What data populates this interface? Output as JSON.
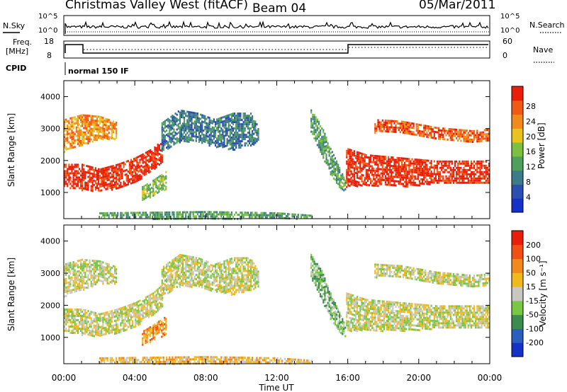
{
  "header": {
    "title": "Christmas Valley West (fitACF)",
    "beam": "Beam 04",
    "date": "05/Mar/2011"
  },
  "top_panels": {
    "nsky_label": "N.Sky",
    "nsky_ticks": [
      "10^5",
      "10^0"
    ],
    "nsearch_label": "N.Search",
    "nsearch_ticks": [
      "10^5",
      "10^0"
    ],
    "freq_label_1": "Freq.",
    "freq_label_2": "[MHz]",
    "freq_ticks": [
      "18",
      "8"
    ],
    "nave_label": "Nave",
    "nave_ticks": [
      "60",
      "0"
    ],
    "cpid_label": "CPID",
    "cpid_value": "normal 150 IF"
  },
  "chart_data": [
    {
      "type": "heatmap",
      "title": "",
      "xlabel": "Time UT",
      "ylabel": "Slant Range [km]",
      "x_ticks": [
        "00:00",
        "04:00",
        "08:00",
        "12:00",
        "16:00",
        "20:00",
        "00:00"
      ],
      "xlim": [
        0,
        24
      ],
      "y_ticks": [
        1000,
        2000,
        3000,
        4000
      ],
      "ylim": [
        180,
        4500
      ],
      "colorbar": {
        "label": "Power [dB]",
        "ticks": [
          "4",
          "8",
          "12",
          "16",
          "20",
          "24",
          "28"
        ],
        "colors": [
          "#1432c8",
          "#2a4fb0",
          "#3d7a8a",
          "#4fa05a",
          "#7cc040",
          "#e8c31e",
          "#f08a1a",
          "#f05a14",
          "#e81e0a"
        ]
      },
      "regions": [
        {
          "name": "evening-low-band",
          "t": [
            0.0,
            1.0,
            2.0,
            3.0,
            4.0,
            5.0,
            5.6
          ],
          "r_low": [
            1200,
            1100,
            1050,
            1150,
            1350,
            1700,
            2000
          ],
          "r_high": [
            1900,
            1900,
            1750,
            1900,
            2100,
            2400,
            2700
          ],
          "level": 8
        },
        {
          "name": "evening-upper-band",
          "t": [
            0.0,
            1.0,
            2.0,
            3.0
          ],
          "r_low": [
            2300,
            2500,
            2700,
            2700
          ],
          "r_high": [
            3300,
            3450,
            3400,
            3200
          ],
          "level": 6
        },
        {
          "name": "early-patch",
          "t": [
            4.4,
            5.0,
            5.8
          ],
          "r_low": [
            800,
            900,
            1150
          ],
          "r_high": [
            1200,
            1400,
            1700
          ],
          "level": 4
        },
        {
          "name": "night-band",
          "t": [
            5.5,
            6.5,
            7.5,
            8.5,
            9.5,
            10.5,
            11.0
          ],
          "r_low": [
            2300,
            2600,
            2600,
            2450,
            2350,
            2500,
            2600
          ],
          "r_high": [
            3200,
            3600,
            3500,
            3300,
            3500,
            3500,
            3000
          ],
          "level": 2
        },
        {
          "name": "post-midday-streak",
          "t": [
            13.9,
            14.5,
            15.0,
            15.5,
            15.9
          ],
          "r_low": [
            2900,
            2200,
            1600,
            1200,
            1000
          ],
          "r_high": [
            3600,
            3100,
            2400,
            1800,
            1300
          ],
          "level": 3
        },
        {
          "name": "day-main-band",
          "t": [
            15.9,
            17.0,
            19.0,
            21.0,
            23.0,
            24.0
          ],
          "r_low": [
            1200,
            1250,
            1200,
            1300,
            1300,
            1300
          ],
          "r_high": [
            2400,
            2200,
            2100,
            2000,
            2000,
            2000
          ],
          "level": 8
        },
        {
          "name": "day-upper-band",
          "t": [
            17.5,
            19.0,
            21.0,
            23.0,
            24.0
          ],
          "r_low": [
            2900,
            2900,
            2700,
            2600,
            2600
          ],
          "r_high": [
            3300,
            3250,
            3050,
            2950,
            3000
          ],
          "level": 7
        },
        {
          "name": "near-range-clutter",
          "t": [
            2.0,
            8.0,
            12.0,
            14.0
          ],
          "r_low": [
            200,
            200,
            200,
            200
          ],
          "r_high": [
            380,
            420,
            380,
            300
          ],
          "level": 3
        }
      ]
    },
    {
      "type": "heatmap",
      "title": "",
      "xlabel": "Time UT",
      "ylabel": "Slant Range [km]",
      "x_ticks": [
        "00:00",
        "04:00",
        "08:00",
        "12:00",
        "16:00",
        "20:00",
        "00:00"
      ],
      "xlim": [
        0,
        24
      ],
      "y_ticks": [
        1000,
        2000,
        3000,
        4000
      ],
      "ylim": [
        180,
        4500
      ],
      "colorbar": {
        "label": "Velocity [m s⁻¹]",
        "ticks": [
          "200",
          "100",
          "50",
          "15",
          "-15",
          "-50",
          "-100",
          "-200"
        ],
        "colors": [
          "#1432c8",
          "#2a5fc0",
          "#3c8c50",
          "#78c846",
          "#c8c8c0",
          "#f0b91e",
          "#f08a1a",
          "#f05014",
          "#e81e0a"
        ]
      },
      "regions": [
        {
          "name": "evening-low-band",
          "t": [
            0.0,
            1.0,
            2.0,
            3.0,
            4.0,
            5.0,
            5.6
          ],
          "r_low": [
            1200,
            1100,
            1050,
            1150,
            1350,
            1700,
            2000
          ],
          "r_high": [
            1900,
            1900,
            1750,
            1900,
            2100,
            2400,
            2700
          ],
          "level": 4
        },
        {
          "name": "evening-upper-band",
          "t": [
            0.0,
            1.0,
            2.0,
            3.0
          ],
          "r_low": [
            2300,
            2500,
            2700,
            2700
          ],
          "r_high": [
            3300,
            3450,
            3400,
            3200
          ],
          "level": 4
        },
        {
          "name": "early-patch",
          "t": [
            4.4,
            5.0,
            5.8
          ],
          "r_low": [
            800,
            900,
            1150
          ],
          "r_high": [
            1200,
            1400,
            1700
          ],
          "level": 6
        },
        {
          "name": "night-band",
          "t": [
            5.5,
            6.5,
            7.5,
            8.5,
            9.5,
            10.5,
            11.0
          ],
          "r_low": [
            2300,
            2600,
            2600,
            2450,
            2350,
            2500,
            2600
          ],
          "r_high": [
            3200,
            3600,
            3500,
            3300,
            3500,
            3500,
            3000
          ],
          "level": 4
        },
        {
          "name": "post-midday-streak",
          "t": [
            13.9,
            14.5,
            15.0,
            15.5,
            15.9
          ],
          "r_low": [
            2900,
            2200,
            1600,
            1200,
            1000
          ],
          "r_high": [
            3600,
            3100,
            2400,
            1800,
            1300
          ],
          "level": 3
        },
        {
          "name": "day-main-band",
          "t": [
            15.9,
            17.0,
            19.0,
            21.0,
            23.0,
            24.0
          ],
          "r_low": [
            1200,
            1250,
            1200,
            1300,
            1300,
            1300
          ],
          "r_high": [
            2400,
            2200,
            2100,
            2000,
            2000,
            2000
          ],
          "level": 4
        },
        {
          "name": "day-upper-band",
          "t": [
            17.5,
            19.0,
            21.0,
            23.0,
            24.0
          ],
          "r_low": [
            2900,
            2900,
            2700,
            2600,
            2600
          ],
          "r_high": [
            3300,
            3250,
            3050,
            2950,
            3000
          ],
          "level": 4
        },
        {
          "name": "near-range-clutter",
          "t": [
            2.0,
            8.0,
            12.0,
            14.0
          ],
          "r_low": [
            200,
            200,
            200,
            200
          ],
          "r_high": [
            380,
            420,
            380,
            300
          ],
          "level": 5
        }
      ]
    }
  ]
}
